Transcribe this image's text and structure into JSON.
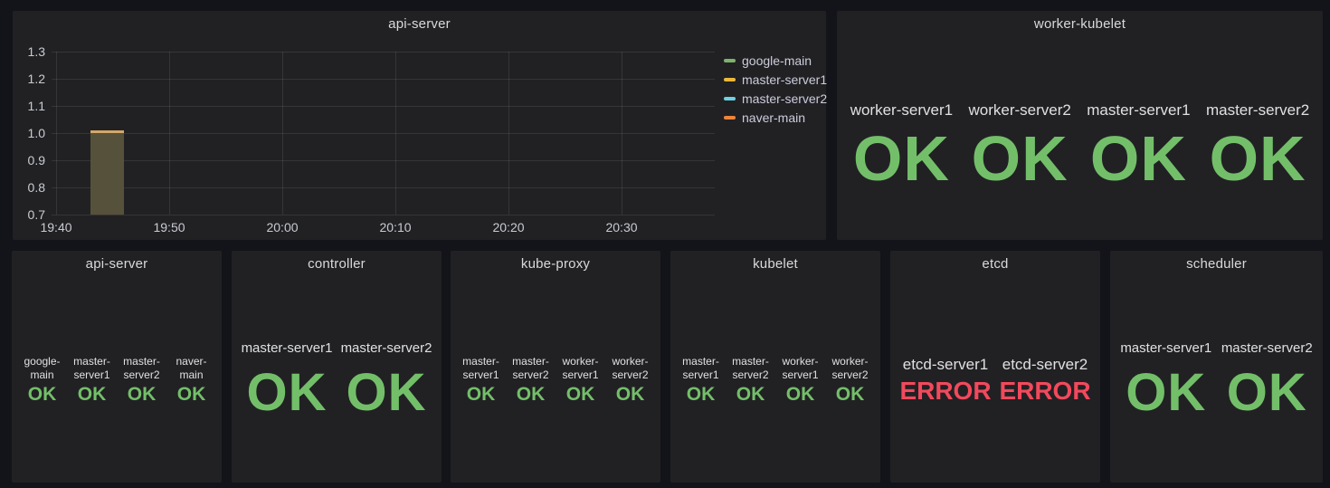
{
  "theme": {
    "page_bg": "#131419",
    "panel_bg": "#212124",
    "title_color": "#D8D9DA",
    "label_color": "#DFE0E2",
    "tick_color": "#C8CBD0",
    "legend_color": "#CCCCDC",
    "grid_color": "rgba(255,255,255,0.09)",
    "bar_fill": "#56513A",
    "bar_top": "#D4A76A",
    "status_colors": {
      "OK": "#73BF69",
      "ERROR": "#F2495C"
    }
  },
  "chart_data": {
    "type": "bar",
    "title": "api-server",
    "x_ticks": [
      "19:40",
      "19:50",
      "20:00",
      "20:10",
      "20:20",
      "20:30"
    ],
    "x_minutes_per_tick": 10,
    "y_ticks": [
      "1.3",
      "1.2",
      "1.1",
      "1.0",
      "0.9",
      "0.8",
      "0.7"
    ],
    "ylim": [
      0.7,
      1.3
    ],
    "grid": true,
    "legend_position": "right",
    "series": [
      {
        "name": "google-main",
        "color": "#7EB26D"
      },
      {
        "name": "master-server1",
        "color": "#EAB839"
      },
      {
        "name": "master-server2",
        "color": "#6ED0E0"
      },
      {
        "name": "naver-main",
        "color": "#EF843C"
      }
    ],
    "bar": {
      "start": "19:43",
      "end": "19:46",
      "value": 1.0
    }
  },
  "panels": {
    "graph": {
      "title": "api-server"
    },
    "worker_kubelet": {
      "title": "worker-kubelet",
      "items": [
        {
          "label": "worker-server1",
          "status": "OK"
        },
        {
          "label": "worker-server2",
          "status": "OK"
        },
        {
          "label": "master-server1",
          "status": "OK"
        },
        {
          "label": "master-server2",
          "status": "OK"
        }
      ]
    },
    "bottom_row": [
      {
        "title": "api-server",
        "size": "sm",
        "items": [
          {
            "label": "google-main",
            "status": "OK"
          },
          {
            "label": "master-server1",
            "status": "OK"
          },
          {
            "label": "master-server2",
            "status": "OK"
          },
          {
            "label": "naver-main",
            "status": "OK"
          }
        ]
      },
      {
        "title": "controller",
        "size": "lg",
        "items": [
          {
            "label": "master-server1",
            "status": "OK"
          },
          {
            "label": "master-server2",
            "status": "OK"
          }
        ]
      },
      {
        "title": "kube-proxy",
        "size": "sm",
        "items": [
          {
            "label": "master-server1",
            "status": "OK"
          },
          {
            "label": "master-server2",
            "status": "OK"
          },
          {
            "label": "worker-server1",
            "status": "OK"
          },
          {
            "label": "worker-server2",
            "status": "OK"
          }
        ]
      },
      {
        "title": "kubelet",
        "size": "sm",
        "items": [
          {
            "label": "master-server1",
            "status": "OK"
          },
          {
            "label": "master-server2",
            "status": "OK"
          },
          {
            "label": "worker-server1",
            "status": "OK"
          },
          {
            "label": "worker-server2",
            "status": "OK"
          }
        ]
      },
      {
        "title": "etcd",
        "size": "md",
        "items": [
          {
            "label": "etcd-server1",
            "status": "ERROR"
          },
          {
            "label": "etcd-server2",
            "status": "ERROR"
          }
        ]
      },
      {
        "title": "scheduler",
        "size": "lg",
        "items": [
          {
            "label": "master-server1",
            "status": "OK"
          },
          {
            "label": "master-server2",
            "status": "OK"
          }
        ]
      }
    ]
  }
}
